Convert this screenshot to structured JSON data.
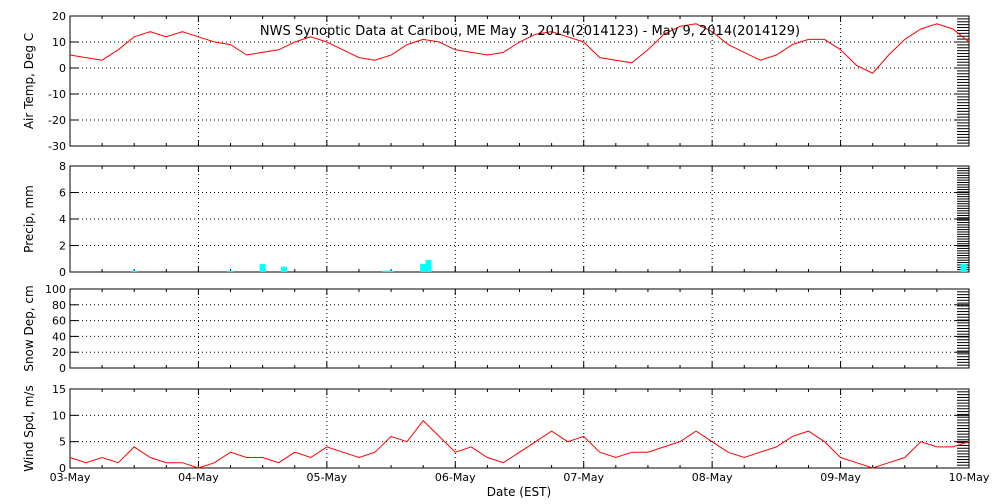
{
  "title": "NWS Synoptic Data at Caribou, ME   May  3, 2014(2014123) - May  9, 2014(2014129)",
  "xlabel": "Date (EST)",
  "x_tick_labels": [
    "03-May",
    "04-May",
    "05-May",
    "06-May",
    "07-May",
    "08-May",
    "09-May",
    "10-May"
  ],
  "colors": {
    "temp_line": "#ff0000",
    "precip_bar": "#00ffff",
    "wind_line": "#ff0000",
    "grid": "#000000",
    "axes": "#000000"
  },
  "chart_data": [
    {
      "type": "line",
      "ylabel": "Air Temp, Deg C",
      "ylim": [
        -30,
        20
      ],
      "y_ticks": [
        -30,
        -20,
        -10,
        0,
        10,
        20
      ],
      "xlim": [
        "2014-05-03 00:00",
        "2014-05-10 00:00"
      ],
      "grid": true,
      "series": [
        {
          "x": [
            "2014-05-03 00:00",
            "2014-05-03 03:00",
            "2014-05-03 06:00",
            "2014-05-03 09:00",
            "2014-05-03 12:00",
            "2014-05-03 15:00",
            "2014-05-03 18:00",
            "2014-05-03 21:00",
            "2014-05-04 00:00",
            "2014-05-04 03:00",
            "2014-05-04 06:00",
            "2014-05-04 09:00",
            "2014-05-04 12:00",
            "2014-05-04 15:00",
            "2014-05-04 18:00",
            "2014-05-04 21:00",
            "2014-05-05 00:00",
            "2014-05-05 03:00",
            "2014-05-05 06:00",
            "2014-05-05 09:00",
            "2014-05-05 12:00",
            "2014-05-05 15:00",
            "2014-05-05 18:00",
            "2014-05-05 21:00",
            "2014-05-06 00:00",
            "2014-05-06 03:00",
            "2014-05-06 06:00",
            "2014-05-06 09:00",
            "2014-05-06 12:00",
            "2014-05-06 15:00",
            "2014-05-06 18:00",
            "2014-05-06 21:00",
            "2014-05-07 00:00",
            "2014-05-07 03:00",
            "2014-05-07 06:00",
            "2014-05-07 09:00",
            "2014-05-07 12:00",
            "2014-05-07 15:00",
            "2014-05-07 18:00",
            "2014-05-07 21:00",
            "2014-05-08 00:00",
            "2014-05-08 03:00",
            "2014-05-08 06:00",
            "2014-05-08 09:00",
            "2014-05-08 12:00",
            "2014-05-08 15:00",
            "2014-05-08 18:00",
            "2014-05-08 21:00",
            "2014-05-09 00:00",
            "2014-05-09 03:00",
            "2014-05-09 06:00",
            "2014-05-09 09:00",
            "2014-05-09 12:00",
            "2014-05-09 15:00",
            "2014-05-09 18:00",
            "2014-05-09 21:00",
            "2014-05-10 00:00"
          ],
          "y": [
            5,
            4,
            3,
            7,
            12,
            14,
            12,
            14,
            12,
            10,
            9,
            5,
            6,
            7,
            10,
            12,
            10,
            7,
            4,
            3,
            5,
            9,
            11,
            10,
            7,
            6,
            5,
            6,
            10,
            13,
            14,
            12,
            10,
            4,
            3,
            2,
            7,
            13,
            16,
            17,
            14,
            9,
            6,
            3,
            5,
            9,
            11,
            11,
            7,
            1,
            -2,
            5,
            11,
            15,
            17,
            15,
            10
          ]
        }
      ]
    },
    {
      "type": "bar",
      "ylabel": "Precip, mm",
      "ylim": [
        0,
        8
      ],
      "y_ticks": [
        0,
        2,
        4,
        6,
        8
      ],
      "xlim": [
        "2014-05-03 00:00",
        "2014-05-10 00:00"
      ],
      "grid": true,
      "series": [
        {
          "x": [
            "2014-05-03 12:00",
            "2014-05-04 06:00",
            "2014-05-04 12:00",
            "2014-05-04 16:00",
            "2014-05-05 11:00",
            "2014-05-05 12:00",
            "2014-05-05 18:00",
            "2014-05-05 19:00",
            "2014-05-09 23:00"
          ],
          "values": [
            0.1,
            0.1,
            0.6,
            0.4,
            0.1,
            0.1,
            0.6,
            0.9,
            0.6
          ]
        }
      ]
    },
    {
      "type": "line",
      "ylabel": "Snow Dep, cm",
      "ylim": [
        0,
        100
      ],
      "y_ticks": [
        0,
        20,
        40,
        60,
        80,
        100
      ],
      "xlim": [
        "2014-05-03 00:00",
        "2014-05-10 00:00"
      ],
      "grid": true,
      "series": []
    },
    {
      "type": "line",
      "ylabel": "Wind Spd, m/s",
      "ylim": [
        0,
        15
      ],
      "y_ticks": [
        0,
        5,
        10,
        15
      ],
      "xlim": [
        "2014-05-03 00:00",
        "2014-05-10 00:00"
      ],
      "grid": true,
      "series": [
        {
          "x": [
            "2014-05-03 00:00",
            "2014-05-03 03:00",
            "2014-05-03 06:00",
            "2014-05-03 09:00",
            "2014-05-03 12:00",
            "2014-05-03 15:00",
            "2014-05-03 18:00",
            "2014-05-03 21:00",
            "2014-05-04 00:00",
            "2014-05-04 03:00",
            "2014-05-04 06:00",
            "2014-05-04 09:00",
            "2014-05-04 12:00",
            "2014-05-04 15:00",
            "2014-05-04 18:00",
            "2014-05-04 21:00",
            "2014-05-05 00:00",
            "2014-05-05 03:00",
            "2014-05-05 06:00",
            "2014-05-05 09:00",
            "2014-05-05 12:00",
            "2014-05-05 15:00",
            "2014-05-05 18:00",
            "2014-05-05 21:00",
            "2014-05-06 00:00",
            "2014-05-06 03:00",
            "2014-05-06 06:00",
            "2014-05-06 09:00",
            "2014-05-06 12:00",
            "2014-05-06 15:00",
            "2014-05-06 18:00",
            "2014-05-06 21:00",
            "2014-05-07 00:00",
            "2014-05-07 03:00",
            "2014-05-07 06:00",
            "2014-05-07 09:00",
            "2014-05-07 12:00",
            "2014-05-07 15:00",
            "2014-05-07 18:00",
            "2014-05-07 21:00",
            "2014-05-08 00:00",
            "2014-05-08 03:00",
            "2014-05-08 06:00",
            "2014-05-08 09:00",
            "2014-05-08 12:00",
            "2014-05-08 15:00",
            "2014-05-08 18:00",
            "2014-05-08 21:00",
            "2014-05-09 00:00",
            "2014-05-09 03:00",
            "2014-05-09 06:00",
            "2014-05-09 09:00",
            "2014-05-09 12:00",
            "2014-05-09 15:00",
            "2014-05-09 18:00",
            "2014-05-09 21:00",
            "2014-05-10 00:00"
          ],
          "y": [
            2,
            1,
            2,
            1,
            4,
            2,
            1,
            1,
            0,
            1,
            3,
            2,
            2,
            1,
            3,
            2,
            4,
            3,
            2,
            3,
            6,
            5,
            9,
            6,
            3,
            4,
            2,
            1,
            3,
            5,
            7,
            5,
            6,
            3,
            2,
            3,
            3,
            4,
            5,
            7,
            5,
            3,
            2,
            3,
            4,
            6,
            7,
            5,
            2,
            1,
            0,
            1,
            2,
            5,
            4,
            4,
            5
          ]
        }
      ]
    }
  ]
}
